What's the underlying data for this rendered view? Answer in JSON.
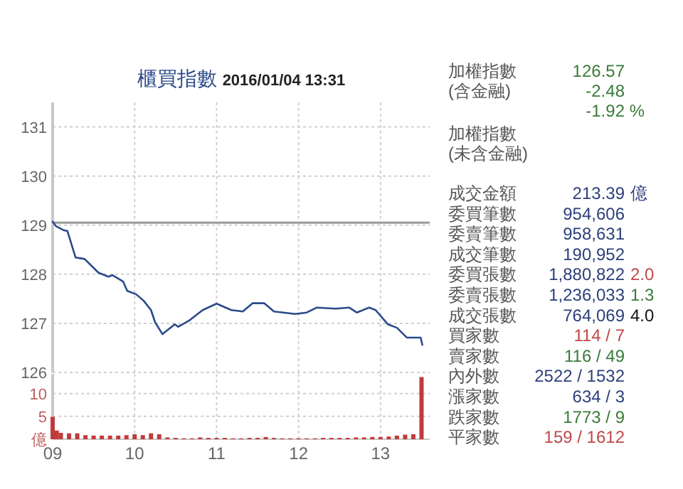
{
  "chart_data": [
    {
      "type": "line",
      "title": "櫃買指數",
      "subtitle": "2016/01/04 13:31",
      "xlim": [
        9,
        13.6
      ],
      "xticks": [
        9,
        10,
        11,
        12,
        13
      ],
      "ylim": [
        126,
        131.5
      ],
      "yticks": [
        126,
        127,
        128,
        129,
        130,
        131
      ],
      "tick_labels": "y",
      "grid": true,
      "ref_lines": [
        {
          "axis": "y",
          "value": 129.05,
          "color": "#9a9a9a"
        }
      ],
      "series": [
        {
          "color": "#2b4a8a",
          "x": [
            9.0,
            9.04,
            9.13,
            9.18,
            9.28,
            9.39,
            9.56,
            9.68,
            9.73,
            9.86,
            9.91,
            10.02,
            10.11,
            10.2,
            10.25,
            10.34,
            10.49,
            10.53,
            10.66,
            10.83,
            11.0,
            11.18,
            11.32,
            11.44,
            11.58,
            11.7,
            11.96,
            12.1,
            12.22,
            12.45,
            12.62,
            12.71,
            12.86,
            12.94,
            13.09,
            13.2,
            13.32,
            13.49,
            13.51
          ],
          "values": [
            129.07,
            128.98,
            128.9,
            128.88,
            128.34,
            128.31,
            128.03,
            127.95,
            127.98,
            127.85,
            127.66,
            127.59,
            127.46,
            127.27,
            127.02,
            126.78,
            126.98,
            126.93,
            127.05,
            127.27,
            127.4,
            127.27,
            127.24,
            127.41,
            127.41,
            127.24,
            127.19,
            127.22,
            127.32,
            127.3,
            127.32,
            127.22,
            127.32,
            127.27,
            126.98,
            126.91,
            126.71,
            126.71,
            126.56
          ]
        }
      ]
    },
    {
      "type": "bar",
      "xlim": [
        9,
        13.6
      ],
      "xticks": [
        {
          "value": 9,
          "label": "09"
        },
        10,
        11,
        12,
        13
      ],
      "ylim": [
        0,
        14.3
      ],
      "yticks": [
        {
          "value": 0,
          "label": "億"
        },
        5,
        10
      ],
      "grid": true,
      "series": [
        {
          "color": "#c23b3b",
          "x": [
            9.0,
            9.05,
            9.1,
            9.2,
            9.3,
            9.4,
            9.5,
            9.6,
            9.7,
            9.8,
            9.9,
            10.0,
            10.1,
            10.2,
            10.3,
            10.4,
            10.5,
            10.6,
            10.7,
            10.8,
            10.9,
            11.0,
            11.1,
            11.2,
            11.3,
            11.4,
            11.5,
            11.6,
            11.7,
            11.8,
            11.9,
            12.0,
            12.1,
            12.2,
            12.3,
            12.4,
            12.5,
            12.6,
            12.7,
            12.8,
            12.9,
            13.0,
            13.1,
            13.2,
            13.3,
            13.4,
            13.5
          ],
          "values": [
            4.9,
            1.9,
            1.4,
            1.3,
            1.3,
            0.9,
            0.8,
            0.8,
            0.8,
            0.8,
            0.9,
            1.1,
            0.9,
            1.3,
            1.1,
            0.4,
            0.3,
            0.2,
            0.2,
            0.4,
            0.3,
            0.3,
            0.3,
            0.2,
            0.2,
            0.3,
            0.3,
            0.5,
            0.3,
            0.2,
            0.2,
            0.2,
            0.2,
            0.2,
            0.3,
            0.3,
            0.3,
            0.3,
            0.4,
            0.4,
            0.5,
            0.5,
            0.6,
            0.8,
            1.0,
            1.1,
            13.6
          ]
        }
      ]
    },
    {
      "type": "other",
      "annotations": [
        "加權指數",
        "126.57",
        "(含金融)",
        "-2.48",
        "-1.92 %",
        "加權指數",
        "(未含金融)",
        "成交金額",
        "213.39",
        "億",
        "委買筆數",
        "954,606",
        "委賣筆數",
        "958,631",
        "成交筆數",
        "190,952",
        "委買張數",
        "1,880,822",
        "2.0",
        "委賣張數",
        "1,236,033",
        "1.3",
        "成交張數",
        "764,069",
        "4.0",
        "買家數",
        "114 / 7",
        "賣家數",
        "116 / 49",
        "內外數",
        "2522 / 1532",
        "漲家數",
        "634 / 3",
        "跌家數",
        "1773 / 9",
        "平家數",
        "159 / 1612"
      ]
    }
  ]
}
